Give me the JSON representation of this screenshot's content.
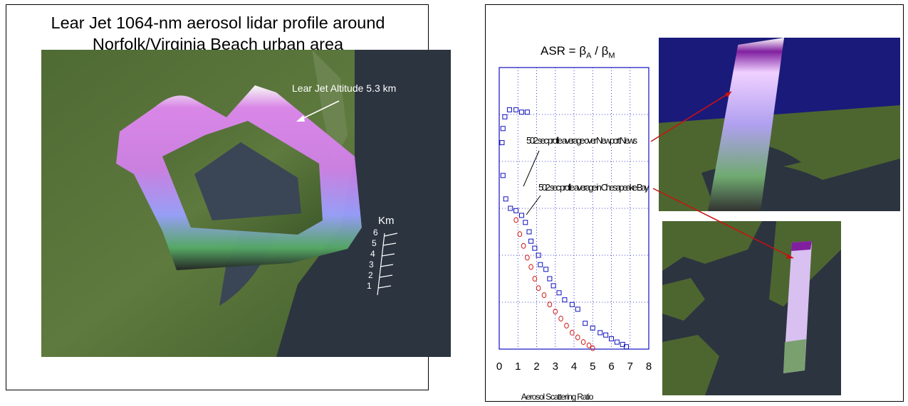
{
  "left": {
    "title_line1": "Lear Jet 1064-nm aerosol lidar profile around",
    "title_line2": "Norfolk/Virginia Beach urban area",
    "altitude_label": "Lear Jet Altitude 5.3 km",
    "km_label": "Km",
    "km_ticks": [
      "6",
      "5",
      "4",
      "3",
      "2",
      "1"
    ]
  },
  "right": {
    "equation": {
      "lhs": "ASR = ",
      "beta": "β",
      "sub_a": "A",
      "slash": " / ",
      "sub_m": "M"
    },
    "label_newport": "502 sec profile average over Newport News",
    "label_chesapeake": "502 sec profile average in Chesapeake Bay",
    "colors": {
      "blue": "#1010c0",
      "red": "#d01818",
      "arrow": "#cc1010",
      "sky": "#1a1a7a"
    }
  },
  "chart_data": {
    "type": "scatter",
    "xlabel": "Aerosol Scattering Ratio",
    "xticks": [
      "0",
      "1",
      "2",
      "3",
      "4",
      "5",
      "6",
      "7",
      "8"
    ],
    "xlim": [
      0,
      8
    ],
    "ylim": [
      0,
      6
    ],
    "series": [
      {
        "name": "502 sec profile average over Newport News",
        "color": "#1010c0",
        "marker": "square",
        "points": [
          [
            0.9,
            5.1
          ],
          [
            1.2,
            5.05
          ],
          [
            1.5,
            5.05
          ],
          [
            0.55,
            5.1
          ],
          [
            0.3,
            4.95
          ],
          [
            0.2,
            4.7
          ],
          [
            0.15,
            4.4
          ],
          [
            0.2,
            3.7
          ],
          [
            0.35,
            3.2
          ],
          [
            0.6,
            3.0
          ],
          [
            0.9,
            2.95
          ],
          [
            1.2,
            2.85
          ],
          [
            1.4,
            2.7
          ],
          [
            1.6,
            2.5
          ],
          [
            1.7,
            2.3
          ],
          [
            1.9,
            2.15
          ],
          [
            2.1,
            2.0
          ],
          [
            2.2,
            1.8
          ],
          [
            2.5,
            1.7
          ],
          [
            2.7,
            1.5
          ],
          [
            2.9,
            1.35
          ],
          [
            3.2,
            1.2
          ],
          [
            3.5,
            1.05
          ],
          [
            3.9,
            0.95
          ],
          [
            4.2,
            0.85
          ],
          [
            4.6,
            0.55
          ],
          [
            5.0,
            0.45
          ],
          [
            5.4,
            0.35
          ],
          [
            5.7,
            0.3
          ],
          [
            6.0,
            0.22
          ],
          [
            6.3,
            0.15
          ],
          [
            6.6,
            0.1
          ],
          [
            6.8,
            0.05
          ]
        ]
      },
      {
        "name": "502 sec profile average in Chesapeake Bay",
        "color": "#d01818",
        "marker": "circle",
        "points": [
          [
            0.9,
            2.75
          ],
          [
            1.1,
            2.45
          ],
          [
            1.3,
            2.2
          ],
          [
            1.5,
            1.95
          ],
          [
            1.7,
            1.75
          ],
          [
            1.9,
            1.5
          ],
          [
            2.1,
            1.3
          ],
          [
            2.4,
            1.15
          ],
          [
            2.7,
            0.95
          ],
          [
            3.0,
            0.8
          ],
          [
            3.3,
            0.65
          ],
          [
            3.6,
            0.5
          ],
          [
            3.9,
            0.35
          ],
          [
            4.2,
            0.25
          ],
          [
            4.5,
            0.15
          ],
          [
            4.8,
            0.08
          ],
          [
            5.0,
            0.02
          ]
        ]
      }
    ]
  }
}
